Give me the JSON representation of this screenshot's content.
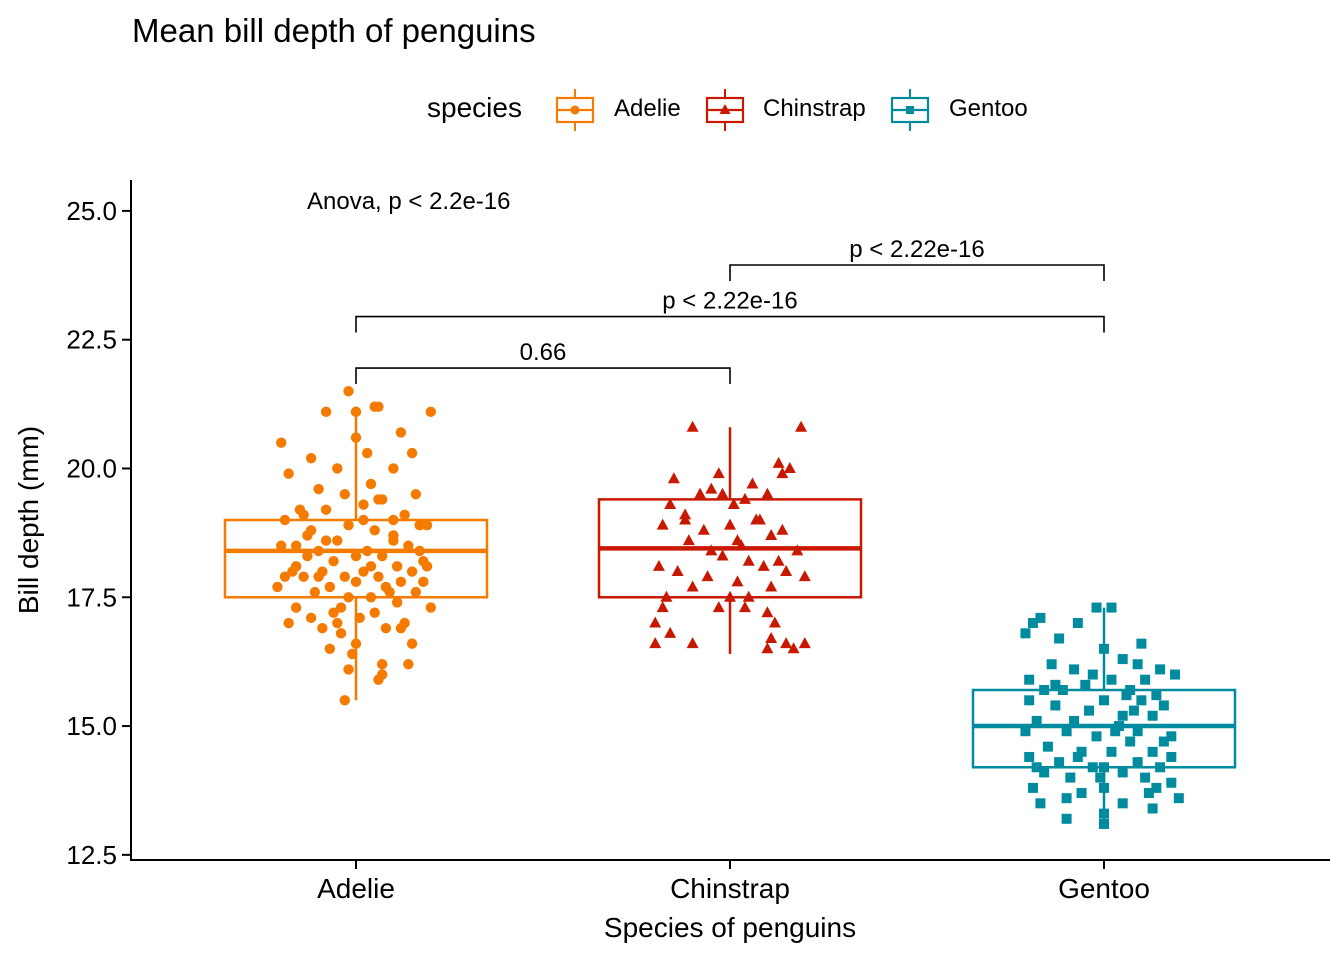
{
  "chart_data": {
    "type": "box",
    "title": "Mean bill depth of penguins",
    "xlabel": "Species of penguins",
    "ylabel": "Bill depth (mm)",
    "ylim": [
      12.4,
      25.6
    ],
    "yticks": [
      12.5,
      15.0,
      17.5,
      20.0,
      22.5,
      25.0
    ],
    "ytick_labels": [
      "12.5",
      "15.0",
      "17.5",
      "20.0",
      "22.5",
      "25.0"
    ],
    "categories": [
      "Adelie",
      "Chinstrap",
      "Gentoo"
    ],
    "legend": {
      "title": "species",
      "position": "top"
    },
    "grid": false,
    "series": [
      {
        "name": "Adelie",
        "color": "#F57A00",
        "marker": "circle",
        "box": {
          "min": 15.5,
          "q1": 17.5,
          "median": 18.4,
          "q3": 19.0,
          "max": 21.2
        },
        "points": [
          [
            -0.02,
            21.5
          ],
          [
            0.05,
            21.2
          ],
          [
            0.0,
            21.1
          ],
          [
            0.2,
            21.1
          ],
          [
            -0.08,
            21.1
          ],
          [
            0.06,
            21.2
          ],
          [
            0.12,
            20.7
          ],
          [
            0.0,
            20.6
          ],
          [
            -0.2,
            20.5
          ],
          [
            0.03,
            20.3
          ],
          [
            -0.12,
            20.2
          ],
          [
            0.15,
            20.3
          ],
          [
            -0.05,
            20.0
          ],
          [
            0.1,
            20.0
          ],
          [
            -0.18,
            19.9
          ],
          [
            0.04,
            19.7
          ],
          [
            -0.1,
            19.6
          ],
          [
            0.16,
            19.5
          ],
          [
            -0.03,
            19.5
          ],
          [
            0.07,
            19.4
          ],
          [
            -0.15,
            19.2
          ],
          [
            0.02,
            19.3
          ],
          [
            0.13,
            19.1
          ],
          [
            -0.08,
            19.2
          ],
          [
            -0.19,
            19.0
          ],
          [
            0.1,
            19.0
          ],
          [
            -0.02,
            18.9
          ],
          [
            0.17,
            18.9
          ],
          [
            0.19,
            18.9
          ],
          [
            -0.12,
            18.8
          ],
          [
            0.05,
            18.8
          ],
          [
            -0.2,
            18.5
          ],
          [
            -0.05,
            18.6
          ],
          [
            0.1,
            18.6
          ],
          [
            -0.16,
            18.5
          ],
          [
            0.03,
            18.4
          ],
          [
            0.14,
            18.5
          ],
          [
            -0.1,
            18.4
          ],
          [
            0.0,
            18.3
          ],
          [
            -0.13,
            18.3
          ],
          [
            0.07,
            18.3
          ],
          [
            0.18,
            18.2
          ],
          [
            -0.06,
            18.2
          ],
          [
            0.11,
            18.1
          ],
          [
            -0.17,
            18.0
          ],
          [
            0.02,
            18.0
          ],
          [
            -0.09,
            18.0
          ],
          [
            0.15,
            18.0
          ],
          [
            0.19,
            18.1
          ],
          [
            -0.03,
            17.9
          ],
          [
            0.06,
            17.9
          ],
          [
            -0.14,
            17.9
          ],
          [
            0.12,
            17.8
          ],
          [
            -0.19,
            17.9
          ],
          [
            0.0,
            17.8
          ],
          [
            -0.07,
            17.7
          ],
          [
            0.08,
            17.7
          ],
          [
            -0.11,
            17.6
          ],
          [
            0.16,
            17.6
          ],
          [
            0.04,
            17.5
          ],
          [
            -0.02,
            17.5
          ],
          [
            0.11,
            17.4
          ],
          [
            -0.16,
            17.3
          ],
          [
            0.2,
            17.3
          ],
          [
            -0.06,
            17.2
          ],
          [
            0.05,
            17.2
          ],
          [
            -0.12,
            17.1
          ],
          [
            0.13,
            17.0
          ],
          [
            -0.18,
            17.0
          ],
          [
            0.01,
            17.1
          ],
          [
            -0.09,
            16.9
          ],
          [
            0.08,
            16.9
          ],
          [
            -0.04,
            16.8
          ],
          [
            0.15,
            16.6
          ],
          [
            -0.07,
            16.5
          ],
          [
            0.0,
            16.6
          ],
          [
            -0.01,
            16.4
          ],
          [
            0.07,
            16.2
          ],
          [
            -0.02,
            16.1
          ],
          [
            0.14,
            16.2
          ],
          [
            0.07,
            16.0
          ],
          [
            0.06,
            15.9
          ],
          [
            -0.03,
            15.5
          ],
          [
            0.1,
            18.7
          ],
          [
            -0.08,
            18.6
          ],
          [
            0.02,
            19.0
          ],
          [
            -0.14,
            19.1
          ],
          [
            0.17,
            18.4
          ],
          [
            -0.21,
            17.7
          ],
          [
            0.09,
            17.6
          ],
          [
            -0.04,
            17.3
          ],
          [
            0.12,
            16.9
          ],
          [
            -0.1,
            17.9
          ],
          [
            0.04,
            18.1
          ],
          [
            -0.05,
            17.0
          ],
          [
            0.18,
            17.8
          ],
          [
            -0.13,
            18.7
          ],
          [
            0.06,
            19.4
          ],
          [
            -0.16,
            18.1
          ]
        ]
      },
      {
        "name": "Chinstrap",
        "color": "#C91800",
        "marker": "triangle",
        "box": {
          "min": 16.4,
          "q1": 17.5,
          "median": 18.45,
          "q3": 19.4,
          "max": 20.8
        },
        "points": [
          [
            -0.1,
            20.8
          ],
          [
            0.19,
            20.8
          ],
          [
            0.13,
            20.1
          ],
          [
            0.16,
            20.0
          ],
          [
            0.14,
            19.9
          ],
          [
            -0.03,
            19.9
          ],
          [
            0.06,
            19.7
          ],
          [
            -0.05,
            19.6
          ],
          [
            -0.15,
            19.8
          ],
          [
            -0.08,
            19.5
          ],
          [
            -0.02,
            19.5
          ],
          [
            0.1,
            19.5
          ],
          [
            0.04,
            19.4
          ],
          [
            0.01,
            19.3
          ],
          [
            -0.16,
            19.3
          ],
          [
            -0.12,
            19.0
          ],
          [
            0.07,
            19.0
          ],
          [
            0.0,
            18.9
          ],
          [
            -0.18,
            18.9
          ],
          [
            0.14,
            18.8
          ],
          [
            -0.07,
            18.8
          ],
          [
            0.11,
            18.7
          ],
          [
            0.03,
            18.5
          ],
          [
            -0.11,
            18.6
          ],
          [
            0.18,
            18.4
          ],
          [
            -0.02,
            18.3
          ],
          [
            0.05,
            18.2
          ],
          [
            -0.19,
            18.1
          ],
          [
            0.09,
            18.1
          ],
          [
            0.15,
            18.0
          ],
          [
            -0.14,
            18.0
          ],
          [
            0.2,
            17.9
          ],
          [
            -0.06,
            17.9
          ],
          [
            0.02,
            17.8
          ],
          [
            0.11,
            17.7
          ],
          [
            -0.1,
            17.7
          ],
          [
            0.05,
            17.5
          ],
          [
            -0.17,
            17.5
          ],
          [
            -0.03,
            17.3
          ],
          [
            0.04,
            17.3
          ],
          [
            0.1,
            17.2
          ],
          [
            -0.18,
            17.3
          ],
          [
            -0.2,
            17.0
          ],
          [
            0.12,
            17.0
          ],
          [
            -0.16,
            16.8
          ],
          [
            0.11,
            16.7
          ],
          [
            0.15,
            16.6
          ],
          [
            -0.2,
            16.6
          ],
          [
            0.2,
            16.6
          ],
          [
            0.1,
            16.5
          ],
          [
            0.17,
            16.5
          ],
          [
            -0.1,
            16.6
          ],
          [
            0.08,
            19.0
          ],
          [
            -0.05,
            18.4
          ],
          [
            0.13,
            18.2
          ],
          [
            -0.12,
            19.1
          ],
          [
            0.02,
            18.6
          ],
          [
            0.0,
            17.5
          ]
        ]
      },
      {
        "name": "Gentoo",
        "color": "#008C9E",
        "marker": "square",
        "box": {
          "min": 13.1,
          "q1": 14.2,
          "median": 15.0,
          "q3": 15.7,
          "max": 17.3
        },
        "points": [
          [
            -0.02,
            17.3
          ],
          [
            0.02,
            17.3
          ],
          [
            -0.19,
            17.0
          ],
          [
            -0.17,
            17.1
          ],
          [
            -0.07,
            17.0
          ],
          [
            -0.21,
            16.8
          ],
          [
            -0.12,
            16.7
          ],
          [
            0.0,
            16.5
          ],
          [
            0.09,
            16.2
          ],
          [
            0.05,
            16.3
          ],
          [
            -0.14,
            16.2
          ],
          [
            0.15,
            16.1
          ],
          [
            -0.08,
            16.1
          ],
          [
            0.19,
            16.0
          ],
          [
            -0.2,
            15.9
          ],
          [
            0.02,
            15.9
          ],
          [
            0.11,
            15.9
          ],
          [
            -0.05,
            15.8
          ],
          [
            -0.16,
            15.7
          ],
          [
            0.07,
            15.7
          ],
          [
            0.14,
            15.6
          ],
          [
            -0.11,
            15.7
          ],
          [
            -0.2,
            15.5
          ],
          [
            0.0,
            15.5
          ],
          [
            0.1,
            15.5
          ],
          [
            0.16,
            15.4
          ],
          [
            -0.13,
            15.4
          ],
          [
            -0.04,
            15.3
          ],
          [
            0.05,
            15.2
          ],
          [
            0.13,
            15.2
          ],
          [
            -0.18,
            15.1
          ],
          [
            -0.08,
            15.1
          ],
          [
            0.04,
            15.0
          ],
          [
            0.09,
            14.9
          ],
          [
            -0.21,
            14.9
          ],
          [
            -0.1,
            14.9
          ],
          [
            0.18,
            14.8
          ],
          [
            -0.02,
            14.8
          ],
          [
            0.07,
            14.7
          ],
          [
            -0.15,
            14.6
          ],
          [
            0.13,
            14.5
          ],
          [
            -0.06,
            14.5
          ],
          [
            0.02,
            14.5
          ],
          [
            0.18,
            14.4
          ],
          [
            -0.2,
            14.4
          ],
          [
            0.09,
            14.3
          ],
          [
            -0.12,
            14.3
          ],
          [
            -0.03,
            14.2
          ],
          [
            0.0,
            14.2
          ],
          [
            0.15,
            14.2
          ],
          [
            -0.16,
            14.1
          ],
          [
            0.05,
            14.1
          ],
          [
            0.11,
            14.0
          ],
          [
            -0.09,
            14.0
          ],
          [
            0.18,
            13.9
          ],
          [
            -0.19,
            13.8
          ],
          [
            0.0,
            13.8
          ],
          [
            -0.06,
            13.7
          ],
          [
            0.12,
            13.7
          ],
          [
            0.14,
            13.8
          ],
          [
            -0.1,
            13.6
          ],
          [
            0.2,
            13.6
          ],
          [
            0.05,
            13.5
          ],
          [
            -0.17,
            13.5
          ],
          [
            0.13,
            13.4
          ],
          [
            -0.1,
            13.2
          ],
          [
            0.0,
            13.3
          ],
          [
            0.0,
            13.1
          ],
          [
            -0.03,
            16.0
          ],
          [
            0.08,
            15.3
          ],
          [
            -0.13,
            15.8
          ],
          [
            0.16,
            14.7
          ],
          [
            -0.07,
            14.4
          ],
          [
            0.06,
            15.6
          ],
          [
            -0.01,
            14.0
          ],
          [
            0.1,
            16.6
          ],
          [
            -0.18,
            14.2
          ],
          [
            0.03,
            14.9
          ]
        ]
      }
    ],
    "annotations": [
      {
        "text": "Anova, p < 2.2e-16"
      }
    ],
    "comparisons": [
      {
        "groups": [
          "Adelie",
          "Chinstrap"
        ],
        "label": "0.66"
      },
      {
        "groups": [
          "Adelie",
          "Gentoo"
        ],
        "label": "p < 2.22e-16"
      },
      {
        "groups": [
          "Chinstrap",
          "Gentoo"
        ],
        "label": "p < 2.22e-16"
      }
    ]
  }
}
